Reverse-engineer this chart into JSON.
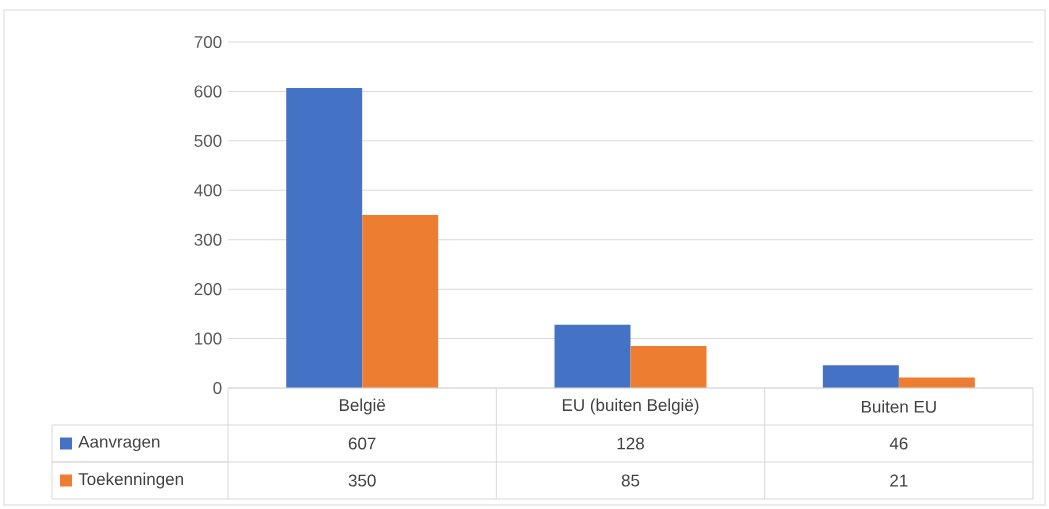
{
  "chart_data": {
    "type": "bar",
    "categories": [
      "België",
      "EU (buiten België)",
      "Buiten EU"
    ],
    "series": [
      {
        "name": "Aanvragen",
        "color": "#4472c4",
        "values": [
          607,
          128,
          46
        ]
      },
      {
        "name": "Toekenningen",
        "color": "#ed7d31",
        "values": [
          350,
          85,
          21
        ]
      }
    ],
    "ylim": [
      0,
      700
    ],
    "yticks": [
      0,
      100,
      200,
      300,
      400,
      500,
      600,
      700
    ],
    "grid": "y",
    "legend": "bottom",
    "data_labels": true
  }
}
